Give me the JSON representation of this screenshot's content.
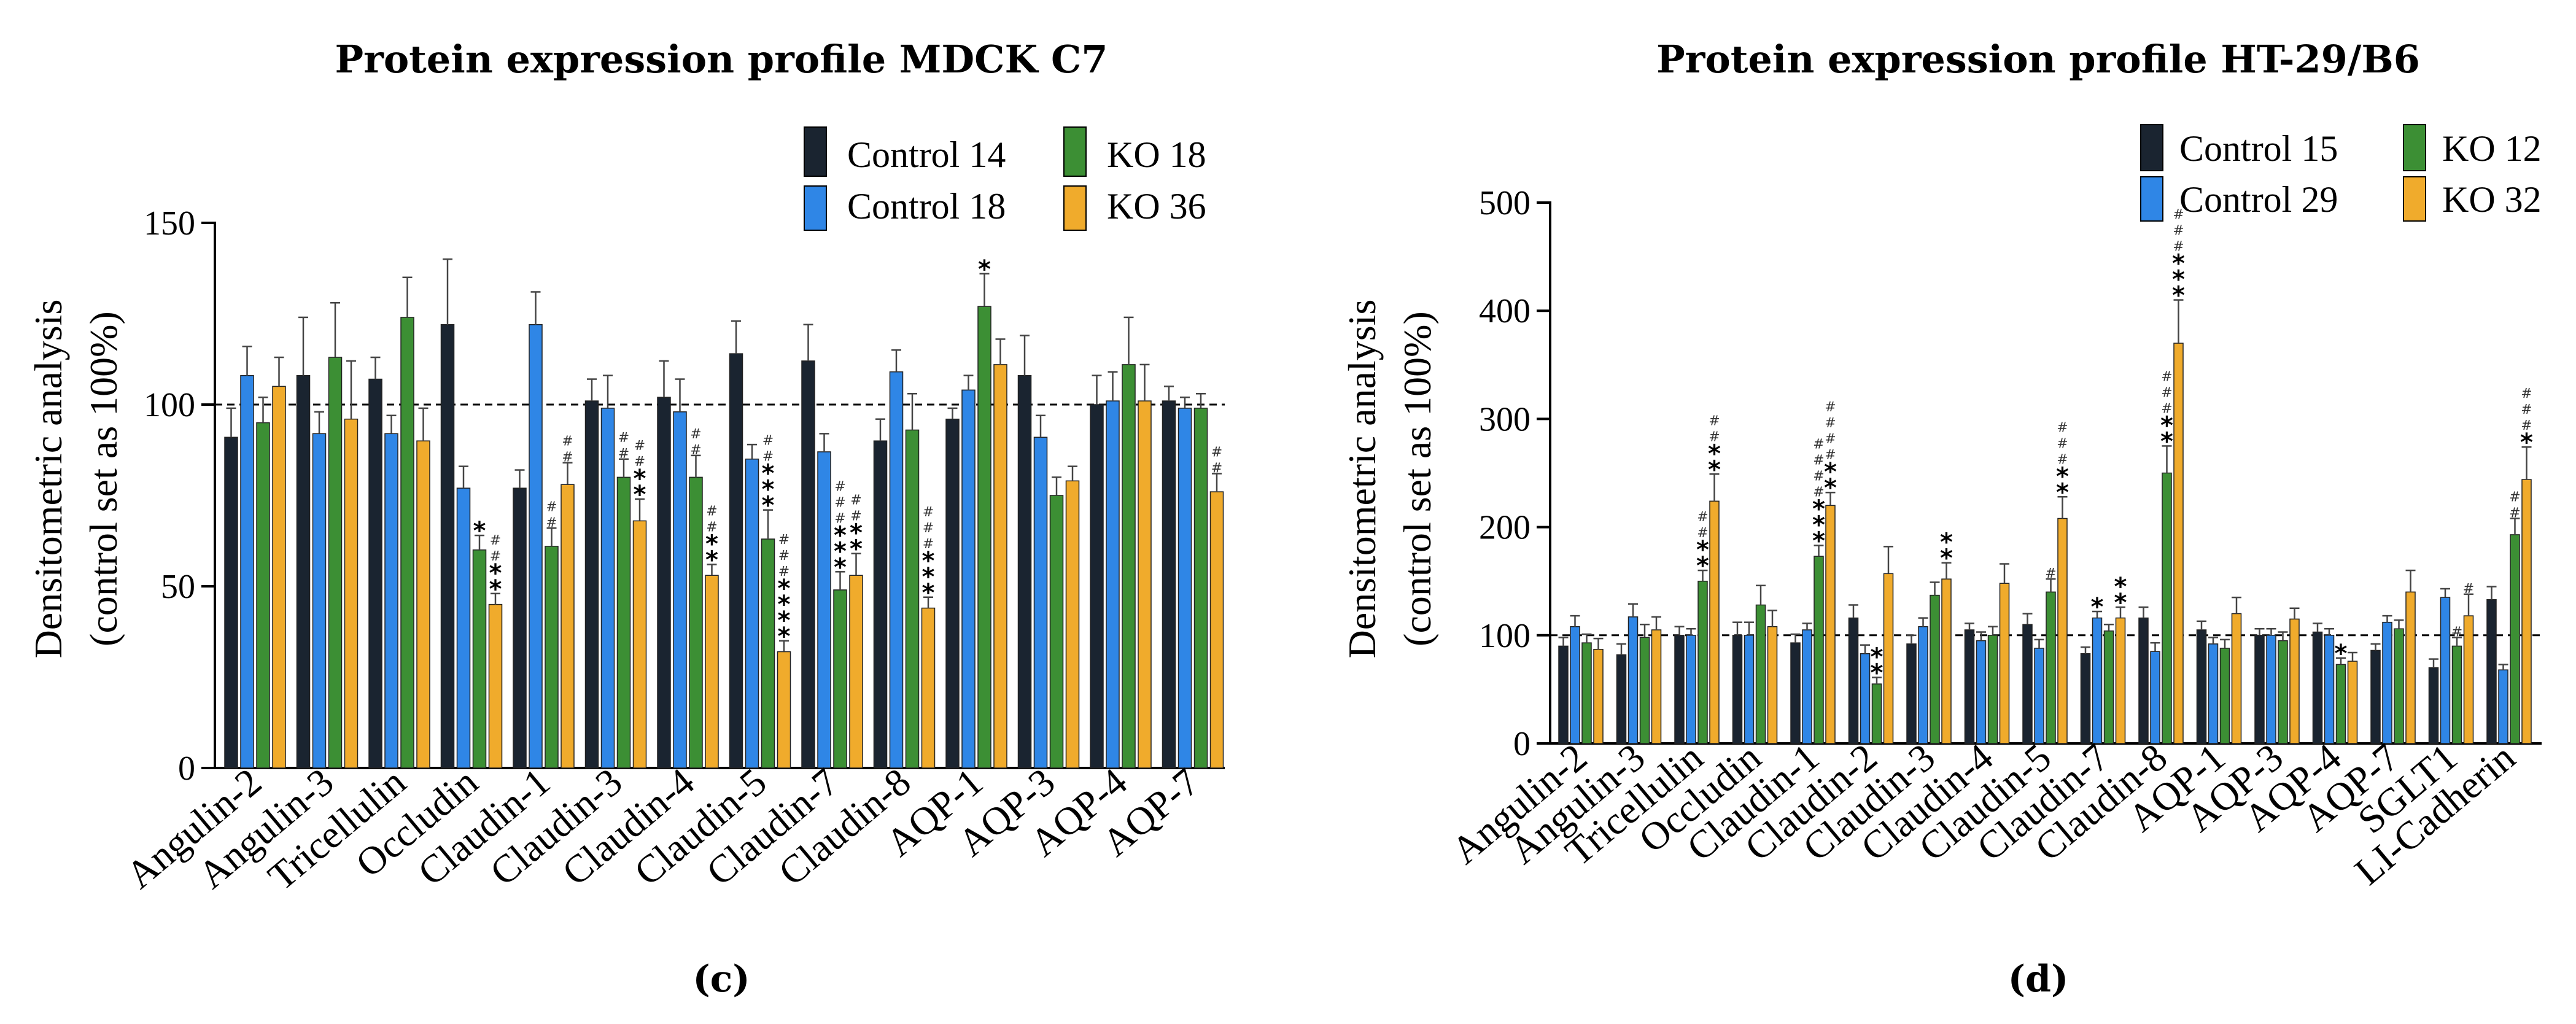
{
  "chart_data": [
    {
      "type": "bar",
      "panel_label": "(c)",
      "title": "Protein expression profile MDCK C7",
      "xlabel": "",
      "ylabel_line1": "Densitometric analysis",
      "ylabel_line2": "(control set as 100%)",
      "ylim": [
        0,
        150
      ],
      "yticks": [
        0,
        50,
        100,
        150
      ],
      "reference_line": 100,
      "legend": [
        "Control 14",
        "Control 18",
        "KO 18",
        "KO 36"
      ],
      "colors": [
        "#1a2430",
        "#2f86e6",
        "#3c8f34",
        "#f0ab2c"
      ],
      "categories": [
        "Angulin-2",
        "Angulin-3",
        "Tricellulin",
        "Occludin",
        "Claudin-1",
        "Claudin-3",
        "Claudin-4",
        "Claudin-5",
        "Claudin-7",
        "Claudin-8",
        "AQP-1",
        "AQP-3",
        "AQP-4",
        "AQP-7"
      ],
      "series": [
        {
          "name": "Control 14",
          "values": [
            91,
            108,
            107,
            122,
            77,
            101,
            102,
            114,
            112,
            90,
            96,
            108,
            100,
            101
          ],
          "errors": [
            8,
            16,
            6,
            18,
            5,
            6,
            10,
            9,
            10,
            6,
            3,
            11,
            8,
            4
          ],
          "stars": [
            "",
            "",
            "",
            "",
            "",
            "",
            "",
            "",
            "",
            "",
            "",
            "",
            "",
            ""
          ],
          "hashes": [
            "",
            "",
            "",
            "",
            "",
            "",
            "",
            "",
            "",
            "",
            "",
            "",
            "",
            ""
          ]
        },
        {
          "name": "Control 18",
          "values": [
            108,
            92,
            92,
            77,
            122,
            99,
            98,
            85,
            87,
            109,
            104,
            91,
            101,
            99
          ],
          "errors": [
            8,
            6,
            5,
            6,
            9,
            9,
            9,
            4,
            5,
            6,
            4,
            6,
            8,
            3
          ],
          "stars": [
            "",
            "",
            "",
            "",
            "",
            "",
            "",
            "",
            "",
            "",
            "",
            "",
            "",
            ""
          ],
          "hashes": [
            "",
            "",
            "",
            "",
            "",
            "",
            "",
            "",
            "",
            "",
            "",
            "",
            "",
            ""
          ]
        },
        {
          "name": "KO 18",
          "values": [
            95,
            113,
            124,
            60,
            61,
            80,
            80,
            63,
            49,
            93,
            127,
            75,
            111,
            99
          ],
          "errors": [
            7,
            15,
            11,
            4,
            5,
            5,
            6,
            8,
            5,
            10,
            9,
            5,
            13,
            4
          ],
          "stars": [
            "",
            "",
            "",
            "*",
            "",
            "",
            "",
            "***",
            "***",
            "",
            "*",
            "",
            "",
            ""
          ],
          "hashes": [
            "",
            "",
            "",
            "",
            "##",
            "##",
            "##",
            "##",
            "###",
            "",
            "",
            "",
            "",
            ""
          ]
        },
        {
          "name": "KO 36",
          "values": [
            105,
            96,
            90,
            45,
            78,
            68,
            53,
            32,
            53,
            44,
            111,
            79,
            101,
            76
          ],
          "errors": [
            8,
            16,
            9,
            3,
            6,
            6,
            3,
            3,
            6,
            3,
            7,
            4,
            10,
            5
          ],
          "stars": [
            "",
            "",
            "",
            "**",
            "",
            "**",
            "**",
            "****",
            "**",
            "***",
            "",
            "",
            "",
            ""
          ],
          "hashes": [
            "",
            "",
            "",
            "##",
            "##",
            "##",
            "##",
            "###",
            "##",
            "###",
            "",
            "",
            "",
            "##"
          ]
        }
      ]
    },
    {
      "type": "bar",
      "panel_label": "(d)",
      "title": "Protein expression profile HT-29/B6",
      "xlabel": "",
      "ylabel_line1": "Densitometric analysis",
      "ylabel_line2": "(control set as 100%)",
      "ylim": [
        0,
        500
      ],
      "yticks": [
        0,
        100,
        200,
        300,
        400,
        500
      ],
      "reference_line": 100,
      "legend": [
        "Control 15",
        "Control 29",
        "KO 12",
        "KO 32"
      ],
      "colors": [
        "#1a2430",
        "#2f86e6",
        "#3c8f34",
        "#f0ab2c"
      ],
      "categories": [
        "Angulin-2",
        "Angulin-3",
        "Tricellulin",
        "Occludin",
        "Claudin-1",
        "Claudin-2",
        "Claudin-3",
        "Claudin-4",
        "Claudin-5",
        "Claudin-7",
        "Claudin-8",
        "AQP-1",
        "AQP-3",
        "AQP-4",
        "AQP-7",
        "SGLT1",
        "LI-Cadherin"
      ],
      "series": [
        {
          "name": "Control 15",
          "values": [
            90,
            82,
            100,
            100,
            93,
            116,
            92,
            105,
            110,
            83,
            116,
            105,
            100,
            103,
            86,
            70,
            133
          ],
          "errors": [
            8,
            10,
            8,
            12,
            8,
            12,
            8,
            6,
            10,
            6,
            10,
            8,
            6,
            8,
            6,
            8,
            12
          ],
          "stars": [
            "",
            "",
            "",
            "",
            "",
            "",
            "",
            "",
            "",
            "",
            "",
            "",
            "",
            "",
            "",
            "",
            ""
          ],
          "hashes": [
            "",
            "",
            "",
            "",
            "",
            "",
            "",
            "",
            "",
            "",
            "",
            "",
            "",
            "",
            "",
            "",
            ""
          ]
        },
        {
          "name": "Control 29",
          "values": [
            108,
            117,
            100,
            100,
            105,
            83,
            108,
            95,
            88,
            116,
            85,
            92,
            100,
            100,
            112,
            135,
            68
          ],
          "errors": [
            10,
            12,
            6,
            12,
            6,
            8,
            8,
            8,
            8,
            6,
            8,
            6,
            6,
            6,
            6,
            8,
            5
          ],
          "stars": [
            "",
            "",
            "",
            "",
            "",
            "",
            "",
            "",
            "",
            "*",
            "",
            "",
            "",
            "",
            "",
            "",
            ""
          ],
          "hashes": [
            "",
            "",
            "",
            "",
            "",
            "",
            "",
            "",
            "",
            "",
            "",
            "",
            "",
            "",
            "",
            "",
            ""
          ]
        },
        {
          "name": "KO 12",
          "values": [
            93,
            98,
            150,
            128,
            173,
            55,
            137,
            100,
            140,
            104,
            250,
            88,
            95,
            73,
            106,
            90,
            193
          ],
          "errors": [
            8,
            12,
            10,
            18,
            10,
            6,
            12,
            8,
            12,
            6,
            25,
            8,
            8,
            6,
            8,
            8,
            15
          ],
          "stars": [
            "",
            "",
            "**",
            "",
            "***",
            "**",
            "",
            "",
            "",
            "",
            "**",
            "",
            "",
            "*",
            "",
            "",
            ""
          ],
          "hashes": [
            "",
            "",
            "##",
            "",
            "####",
            "",
            "",
            "",
            "#",
            "",
            "###",
            "",
            "",
            "",
            "",
            "#",
            "##"
          ]
        },
        {
          "name": "KO 32",
          "values": [
            87,
            105,
            224,
            108,
            220,
            157,
            152,
            148,
            208,
            116,
            370,
            120,
            115,
            76,
            140,
            118,
            244
          ],
          "errors": [
            10,
            12,
            25,
            15,
            12,
            25,
            15,
            18,
            20,
            10,
            40,
            15,
            10,
            8,
            20,
            20,
            30
          ],
          "stars": [
            "",
            "",
            "**",
            "",
            "**",
            "",
            "**",
            "",
            "**",
            "**",
            "***",
            "",
            "",
            "",
            "",
            "",
            "*"
          ],
          "hashes": [
            "",
            "",
            "##",
            "",
            "####",
            "",
            "",
            "",
            "###",
            "",
            "###",
            "",
            "",
            "",
            "",
            "#",
            "###"
          ]
        }
      ]
    }
  ]
}
